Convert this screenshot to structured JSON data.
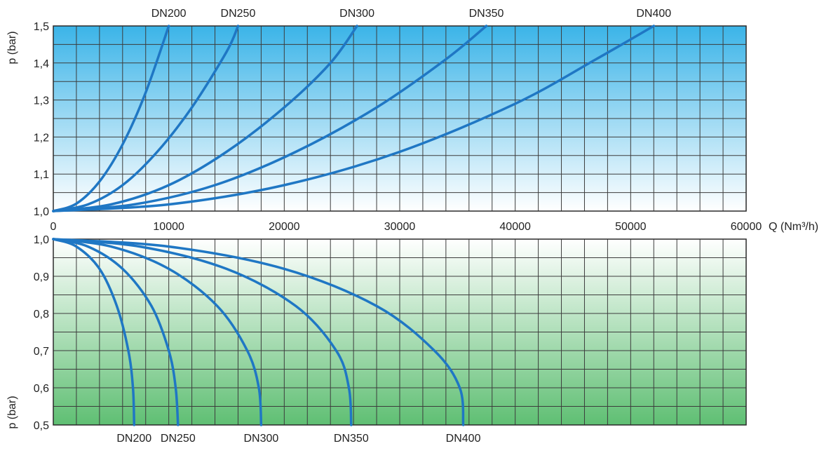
{
  "chart_data": [
    {
      "type": "line",
      "panel": "upper",
      "ylabel": "p (bar)",
      "xlabel": "Q (Nm³/h)",
      "xlim": [
        0,
        60000
      ],
      "ylim": [
        1.0,
        1.5
      ],
      "x_ticks": [
        0,
        10000,
        20000,
        30000,
        40000,
        50000,
        60000
      ],
      "x_tick_labels": [
        "0",
        "10000",
        "20000",
        "30000",
        "40000",
        "50000",
        "60000"
      ],
      "y_ticks": [
        1.0,
        1.1,
        1.2,
        1.3,
        1.4,
        1.5
      ],
      "y_tick_labels": [
        "1,0",
        "1,1",
        "1,2",
        "1,3",
        "1,4",
        "1,5"
      ],
      "grid": true,
      "background_gradient": [
        "#3bb4e8",
        "#ffffff"
      ],
      "line_color": "#1f77c4",
      "series": [
        {
          "name": "DN200",
          "points": [
            [
              0,
              1.0
            ],
            [
              2000,
              1.02
            ],
            [
              4000,
              1.08
            ],
            [
              6000,
              1.18
            ],
            [
              8000,
              1.32
            ],
            [
              10000,
              1.5
            ]
          ]
        },
        {
          "name": "DN250",
          "points": [
            [
              0,
              1.0
            ],
            [
              3000,
              1.018
            ],
            [
              6000,
              1.07
            ],
            [
              9000,
              1.16
            ],
            [
              12000,
              1.28
            ],
            [
              15000,
              1.43
            ],
            [
              16000,
              1.5
            ]
          ]
        },
        {
          "name": "DN300",
          "points": [
            [
              0,
              1.0
            ],
            [
              5000,
              1.018
            ],
            [
              10000,
              1.07
            ],
            [
              15000,
              1.16
            ],
            [
              20000,
              1.28
            ],
            [
              24000,
              1.4
            ],
            [
              26300,
              1.5
            ]
          ]
        },
        {
          "name": "DN350",
          "points": [
            [
              0,
              1.0
            ],
            [
              7000,
              1.018
            ],
            [
              14000,
              1.07
            ],
            [
              21000,
              1.16
            ],
            [
              28000,
              1.28
            ],
            [
              34000,
              1.41
            ],
            [
              37500,
              1.5
            ]
          ]
        },
        {
          "name": "DN400",
          "points": [
            [
              0,
              1.0
            ],
            [
              10000,
              1.018
            ],
            [
              20000,
              1.07
            ],
            [
              30000,
              1.16
            ],
            [
              40000,
              1.29
            ],
            [
              47000,
              1.41
            ],
            [
              52000,
              1.5
            ]
          ]
        }
      ]
    },
    {
      "type": "line",
      "panel": "lower",
      "ylabel": "p (bar)",
      "xlabel": "",
      "xlim": [
        0,
        60000
      ],
      "ylim": [
        0.5,
        1.0
      ],
      "y_ticks": [
        0.5,
        0.6,
        0.7,
        0.8,
        0.9,
        1.0
      ],
      "y_tick_labels": [
        "0,5",
        "0,6",
        "0,7",
        "0,8",
        "0,9",
        "1,0"
      ],
      "grid": true,
      "background_gradient": [
        "#ffffff",
        "#5fbf73"
      ],
      "line_color": "#1f77c4",
      "series": [
        {
          "name": "DN200",
          "points": [
            [
              0,
              1.0
            ],
            [
              2000,
              0.98
            ],
            [
              4000,
              0.92
            ],
            [
              5500,
              0.82
            ],
            [
              6500,
              0.7
            ],
            [
              6900,
              0.6
            ],
            [
              7000,
              0.5
            ]
          ]
        },
        {
          "name": "DN250",
          "points": [
            [
              0,
              1.0
            ],
            [
              3000,
              0.98
            ],
            [
              6000,
              0.92
            ],
            [
              8500,
              0.82
            ],
            [
              10000,
              0.7
            ],
            [
              10600,
              0.6
            ],
            [
              10800,
              0.5
            ]
          ]
        },
        {
          "name": "DN300",
          "points": [
            [
              0,
              1.0
            ],
            [
              5000,
              0.98
            ],
            [
              10000,
              0.92
            ],
            [
              14200,
              0.82
            ],
            [
              16800,
              0.7
            ],
            [
              17800,
              0.6
            ],
            [
              18000,
              0.5
            ]
          ]
        },
        {
          "name": "DN350",
          "points": [
            [
              0,
              1.0
            ],
            [
              7500,
              0.98
            ],
            [
              15000,
              0.92
            ],
            [
              21000,
              0.82
            ],
            [
              24500,
              0.7
            ],
            [
              25600,
              0.6
            ],
            [
              25800,
              0.5
            ]
          ]
        },
        {
          "name": "DN400",
          "points": [
            [
              0,
              1.0
            ],
            [
              10000,
              0.98
            ],
            [
              20000,
              0.92
            ],
            [
              28000,
              0.82
            ],
            [
              33000,
              0.7
            ],
            [
              35200,
              0.6
            ],
            [
              35500,
              0.5
            ]
          ]
        }
      ]
    }
  ]
}
